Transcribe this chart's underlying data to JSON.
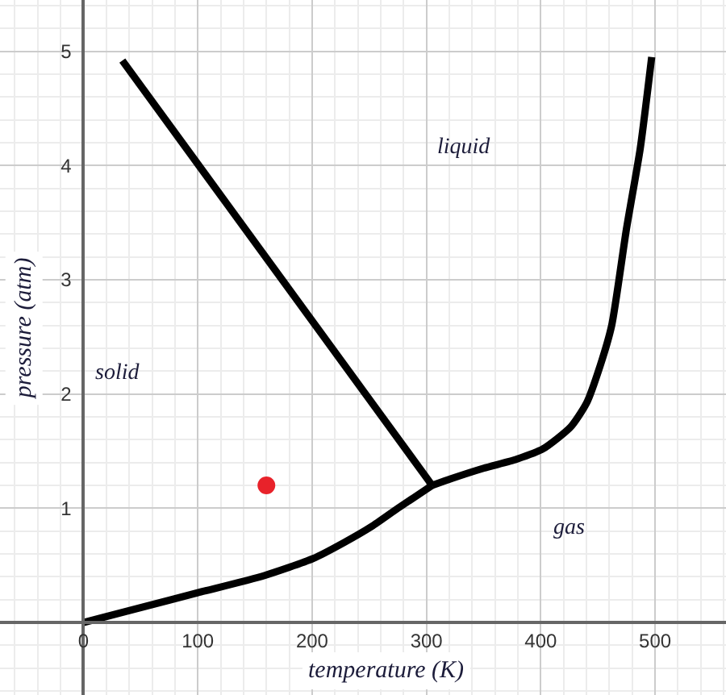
{
  "chart_data": {
    "type": "line",
    "xlabel": "temperature (K)",
    "ylabel": "pressure (atm)",
    "xlim": [
      -73,
      562
    ],
    "ylim": [
      -0.635,
      5.45
    ],
    "xticks": [
      0,
      100,
      200,
      300,
      400,
      500
    ],
    "yticks": [
      1,
      2,
      3,
      4,
      5
    ],
    "grid": true,
    "series": [
      {
        "color": "#000000",
        "x": [
          34,
          305
        ],
        "values": [
          4.92,
          1.2
        ]
      },
      {
        "color": "#000000",
        "x": [
          0,
          50,
          100,
          158,
          201,
          228,
          252,
          275,
          305
        ],
        "values": [
          0,
          0.13,
          0.26,
          0.41,
          0.56,
          0.7,
          0.84,
          1.0,
          1.2
        ]
      },
      {
        "color": "#000000",
        "x": [
          305,
          322,
          350,
          379,
          402,
          426,
          440,
          452,
          462,
          475,
          487,
          497
        ],
        "values": [
          1.2,
          1.26,
          1.35,
          1.43,
          1.52,
          1.71,
          1.92,
          2.25,
          2.6,
          3.45,
          4.15,
          4.95
        ]
      },
      {
        "type": "scatter",
        "marker": "circle",
        "color": "#e8222a",
        "x": [
          160
        ],
        "values": [
          1.2
        ]
      }
    ],
    "annotations": [
      "liquid",
      "solid",
      "gas"
    ]
  }
}
